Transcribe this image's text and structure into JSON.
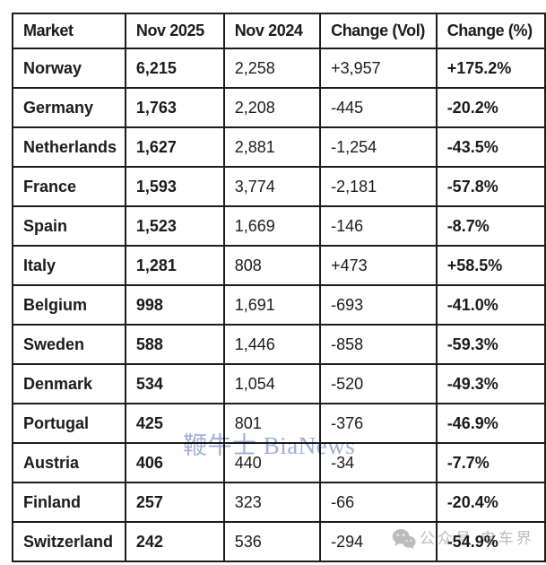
{
  "chart_data": {
    "type": "table",
    "title": "",
    "columns": [
      {
        "key": "market",
        "label": "Market"
      },
      {
        "key": "nov-2025",
        "label": "Nov 2025"
      },
      {
        "key": "nov-2024",
        "label": "Nov 2024"
      },
      {
        "key": "change-vol",
        "label": "Change (Vol)"
      },
      {
        "key": "change-pct",
        "label": "Change (%)"
      }
    ],
    "rows": [
      [
        "Norway",
        "6,215",
        "2,258",
        "+3,957",
        "+175.2%"
      ],
      [
        "Germany",
        "1,763",
        "2,208",
        "-445",
        "-20.2%"
      ],
      [
        "Netherlands",
        "1,627",
        "2,881",
        "-1,254",
        "-43.5%"
      ],
      [
        "France",
        "1,593",
        "3,774",
        "-2,181",
        "-57.8%"
      ],
      [
        "Spain",
        "1,523",
        "1,669",
        "-146",
        "-8.7%"
      ],
      [
        "Italy",
        "1,281",
        "808",
        "+473",
        "+58.5%"
      ],
      [
        "Belgium",
        "998",
        "1,691",
        "-693",
        "-41.0%"
      ],
      [
        "Sweden",
        "588",
        "1,446",
        "-858",
        "-59.3%"
      ],
      [
        "Denmark",
        "534",
        "1,054",
        "-520",
        "-49.3%"
      ],
      [
        "Portugal",
        "425",
        "801",
        "-376",
        "-46.9%"
      ],
      [
        "Austria",
        "406",
        "440",
        "-34",
        "-7.7%"
      ],
      [
        "Finland",
        "257",
        "323",
        "-66",
        "-20.4%"
      ],
      [
        "Switzerland",
        "242",
        "536",
        "-294",
        "-54.9%"
      ]
    ]
  },
  "watermarks": {
    "bianews": {
      "text": "鞭牛士 BiaNews",
      "color": "#9fafd8"
    },
    "wechat": {
      "icon": "wechat-icon",
      "text": "公众号 电车界",
      "color": "#bcbcbc"
    }
  },
  "colors": {
    "text": "#1b1b1b",
    "border": "#1c1c1c",
    "background": "#ffffff",
    "watermark_blue": "#9fafd8",
    "watermark_gray": "#bcbcbc"
  }
}
